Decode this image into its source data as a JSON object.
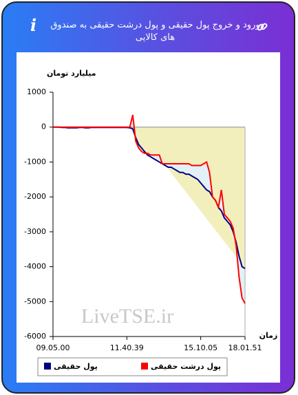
{
  "header": {
    "title": "ورود و خروج پول حقیقی و پول درشت حقیقی به صندوق های کالایی"
  },
  "chart_data": {
    "type": "line",
    "y_label": "میلیارد تومان",
    "x_label": "زمان",
    "watermark": "LiveTSE.ir",
    "categories": [
      "09.05.00",
      null,
      null,
      null,
      null,
      null,
      null,
      null,
      null,
      null,
      null,
      null,
      null,
      null,
      null,
      null,
      null,
      null,
      null,
      null,
      null,
      null,
      null,
      null,
      null,
      "11.40.39",
      null,
      null,
      null,
      null,
      null,
      null,
      null,
      null,
      null,
      null,
      null,
      null,
      null,
      null,
      null,
      null,
      null,
      null,
      null,
      null,
      null,
      null,
      null,
      null,
      "15.10.05",
      null,
      null,
      null,
      null,
      null,
      null,
      null,
      null,
      null,
      null,
      null,
      null,
      null,
      null,
      "18.01.51"
    ],
    "series": [
      {
        "name": "پول حقیقی",
        "color": "#000080",
        "values": [
          0,
          0,
          0,
          -10,
          -10,
          -20,
          -20,
          -20,
          -20,
          -10,
          -10,
          -20,
          -20,
          -10,
          -10,
          -10,
          -10,
          -10,
          -10,
          -10,
          -10,
          -10,
          -10,
          -10,
          -10,
          -10,
          -20,
          -50,
          -300,
          -500,
          -600,
          -700,
          -800,
          -850,
          -900,
          -950,
          -1000,
          -1050,
          -1100,
          -1150,
          -1150,
          -1200,
          -1250,
          -1300,
          -1300,
          -1350,
          -1350,
          -1400,
          -1450,
          -1500,
          -1600,
          -1700,
          -1800,
          -1850,
          -2000,
          -2100,
          -2300,
          -2400,
          -2600,
          -2700,
          -2800,
          -3000,
          -3300,
          -3700,
          -4000,
          -4050
        ]
      },
      {
        "name": "پول درشت حقیقی",
        "color": "#ff0000",
        "values": [
          0,
          0,
          0,
          0,
          0,
          0,
          0,
          0,
          0,
          0,
          0,
          0,
          0,
          0,
          0,
          0,
          0,
          0,
          0,
          0,
          0,
          0,
          0,
          0,
          0,
          0,
          0,
          350,
          -400,
          -600,
          -700,
          -750,
          -750,
          -800,
          -800,
          -800,
          -800,
          -1050,
          -1050,
          -1050,
          -1050,
          -1050,
          -1050,
          -1050,
          -1050,
          -1050,
          -1050,
          -1100,
          -1100,
          -1100,
          -1100,
          -1050,
          -1000,
          -1300,
          -2000,
          -2100,
          -2300,
          -1800,
          -2500,
          -2600,
          -2700,
          -2900,
          -3400,
          -4300,
          -4900,
          -5050
        ]
      }
    ],
    "ylim": [
      -6000,
      1000
    ],
    "yticks": [
      1000,
      0,
      -1000,
      -2000,
      -3000,
      -4000,
      -5000,
      -6000
    ],
    "legend": "bottom"
  }
}
